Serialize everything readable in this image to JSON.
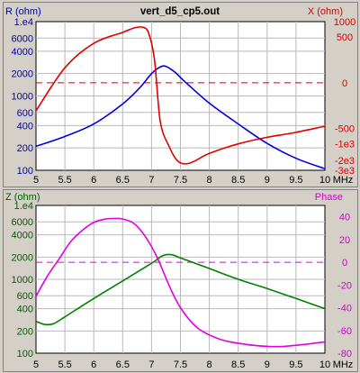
{
  "chart_data": [
    {
      "type": "line",
      "title": "vert_d5_cp5.out",
      "x_unit": "MHz",
      "xlim": [
        5,
        10
      ],
      "x_ticks": [
        "5",
        "5.5",
        "6",
        "6.5",
        "7",
        "7.5",
        "8",
        "8.5",
        "9",
        "9.5",
        "10"
      ],
      "left_axis": {
        "label": "R (ohm)",
        "scale": "log",
        "lim": [
          100,
          10000
        ],
        "ticks": [
          {
            "value": 100,
            "label": "100"
          },
          {
            "value": 200,
            "label": "200"
          },
          {
            "value": 400,
            "label": "400"
          },
          {
            "value": 600,
            "label": "600"
          },
          {
            "value": 1000,
            "label": "1000"
          },
          {
            "value": 2000,
            "label": "2000"
          },
          {
            "value": 4000,
            "label": "4000"
          },
          {
            "value": 6000,
            "label": "6000"
          },
          {
            "value": 10000,
            "label": "1.e4"
          }
        ]
      },
      "right_axis": {
        "label": "X (ohm)",
        "scale": "symlog",
        "lim": [
          -3000,
          1000
        ],
        "ticks": [
          {
            "value": 1000,
            "label": "1000"
          },
          {
            "value": 500,
            "label": "500"
          },
          {
            "value": 0,
            "label": "0"
          },
          {
            "value": -500,
            "label": "-500"
          },
          {
            "value": -1000,
            "label": "-1e3"
          },
          {
            "value": -2000,
            "label": "-2e3"
          },
          {
            "value": -3000,
            "label": "-3e3"
          }
        ]
      },
      "reference_line": {
        "axis": "right",
        "value": 0,
        "style": "dashed",
        "color": "#d40000"
      },
      "series": [
        {
          "axis": "left",
          "color": "#0000e0",
          "x": [
            5.0,
            5.5,
            6.0,
            6.5,
            6.8,
            7.0,
            7.15,
            7.25,
            7.4,
            7.6,
            8.0,
            8.5,
            9.0,
            9.5,
            10.0
          ],
          "y": [
            210,
            285,
            420,
            780,
            1300,
            2000,
            2450,
            2500,
            2100,
            1500,
            800,
            420,
            230,
            145,
            105
          ]
        },
        {
          "axis": "right",
          "color": "#e00000",
          "x": [
            5.0,
            5.5,
            6.0,
            6.5,
            6.7,
            6.85,
            6.95,
            7.05,
            7.15,
            7.3,
            7.45,
            7.6,
            7.75,
            8.0,
            8.5,
            9.0,
            9.5,
            10.0
          ],
          "y": [
            -200,
            80,
            370,
            620,
            760,
            780,
            600,
            150,
            -350,
            -1100,
            -2050,
            -2300,
            -2050,
            -1500,
            -1000,
            -750,
            -600,
            -450
          ]
        }
      ]
    },
    {
      "type": "line",
      "x_unit": "MHz",
      "xlim": [
        5,
        10
      ],
      "x_ticks": [
        "5",
        "5.5",
        "6",
        "6.5",
        "7",
        "7.5",
        "8",
        "8.5",
        "9",
        "9.5",
        "10"
      ],
      "left_axis": {
        "label": "Z (ohm)",
        "scale": "log",
        "lim": [
          100,
          10000
        ],
        "ticks": [
          {
            "value": 100,
            "label": "100"
          },
          {
            "value": 200,
            "label": "200"
          },
          {
            "value": 400,
            "label": "400"
          },
          {
            "value": 600,
            "label": "600"
          },
          {
            "value": 1000,
            "label": "1000"
          },
          {
            "value": 2000,
            "label": "2000"
          },
          {
            "value": 4000,
            "label": "4000"
          },
          {
            "value": 6000,
            "label": "6000"
          },
          {
            "value": 10000,
            "label": "1.e4"
          }
        ]
      },
      "right_axis": {
        "label": "Phase",
        "scale": "linear",
        "lim": [
          -80,
          50
        ],
        "ticks": [
          {
            "value": 40,
            "label": "40"
          },
          {
            "value": 20,
            "label": "20"
          },
          {
            "value": 0,
            "label": "0"
          },
          {
            "value": -20,
            "label": "-20"
          },
          {
            "value": -40,
            "label": "-40"
          },
          {
            "value": -60,
            "label": "-60"
          },
          {
            "value": -80,
            "label": "-80"
          }
        ]
      },
      "reference_line": {
        "axis": "right",
        "value": 0,
        "style": "dashed",
        "color": "#e000e0"
      },
      "series": [
        {
          "axis": "left",
          "color": "#008000",
          "x": [
            5.0,
            5.15,
            5.3,
            5.5,
            6.0,
            6.5,
            7.0,
            7.2,
            7.35,
            7.5,
            8.0,
            8.5,
            9.0,
            9.5,
            10.0
          ],
          "y": [
            270,
            245,
            250,
            310,
            550,
            950,
            1650,
            2100,
            2150,
            1950,
            1400,
            1000,
            750,
            550,
            400
          ]
        },
        {
          "axis": "right",
          "color": "#e000e0",
          "x": [
            5.0,
            5.2,
            5.4,
            5.6,
            5.8,
            6.0,
            6.2,
            6.35,
            6.5,
            6.7,
            6.9,
            7.1,
            7.3,
            7.5,
            7.8,
            8.2,
            8.6,
            9.0,
            9.3,
            9.7,
            10.0
          ],
          "y": [
            -30,
            -12,
            3,
            18,
            28,
            35,
            38,
            38.5,
            38,
            34,
            22,
            4,
            -20,
            -40,
            -58,
            -68,
            -72,
            -74,
            -74,
            -72,
            -70
          ]
        }
      ]
    }
  ]
}
